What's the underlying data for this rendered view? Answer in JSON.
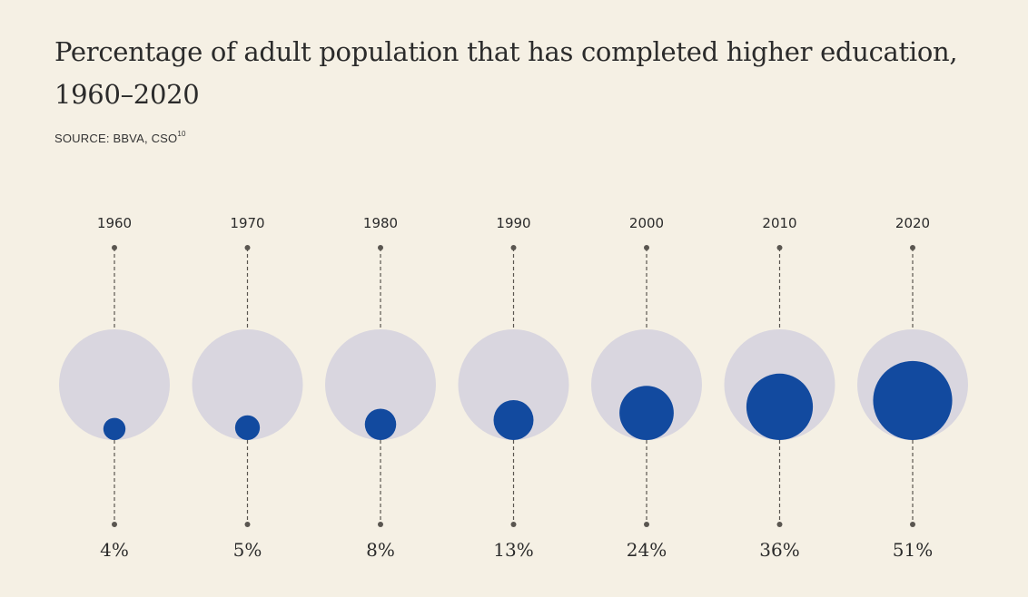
{
  "title": "Percentage of adult population that has completed higher education,",
  "title_line2": "1960–2020",
  "source": {
    "label": "SOURCE: BBVA, CSO",
    "note": "10"
  },
  "colors": {
    "background": "#f5f0e4",
    "outer_circle": "#d9d6df",
    "inner_circle": "#124a9f",
    "connector": "#5a5650"
  },
  "chart_data": {
    "type": "proportional-circle",
    "title": "Percentage of adult population that has completed higher education, 1960–2020",
    "categories": [
      "1960",
      "1970",
      "1980",
      "1990",
      "2000",
      "2010",
      "2020"
    ],
    "values": [
      4,
      5,
      8,
      13,
      24,
      36,
      51
    ],
    "value_labels": [
      "4%",
      "5%",
      "8%",
      "13%",
      "24%",
      "36%",
      "51%"
    ],
    "unit": "%",
    "reference_value": 100,
    "grid": false,
    "legend": "none"
  }
}
